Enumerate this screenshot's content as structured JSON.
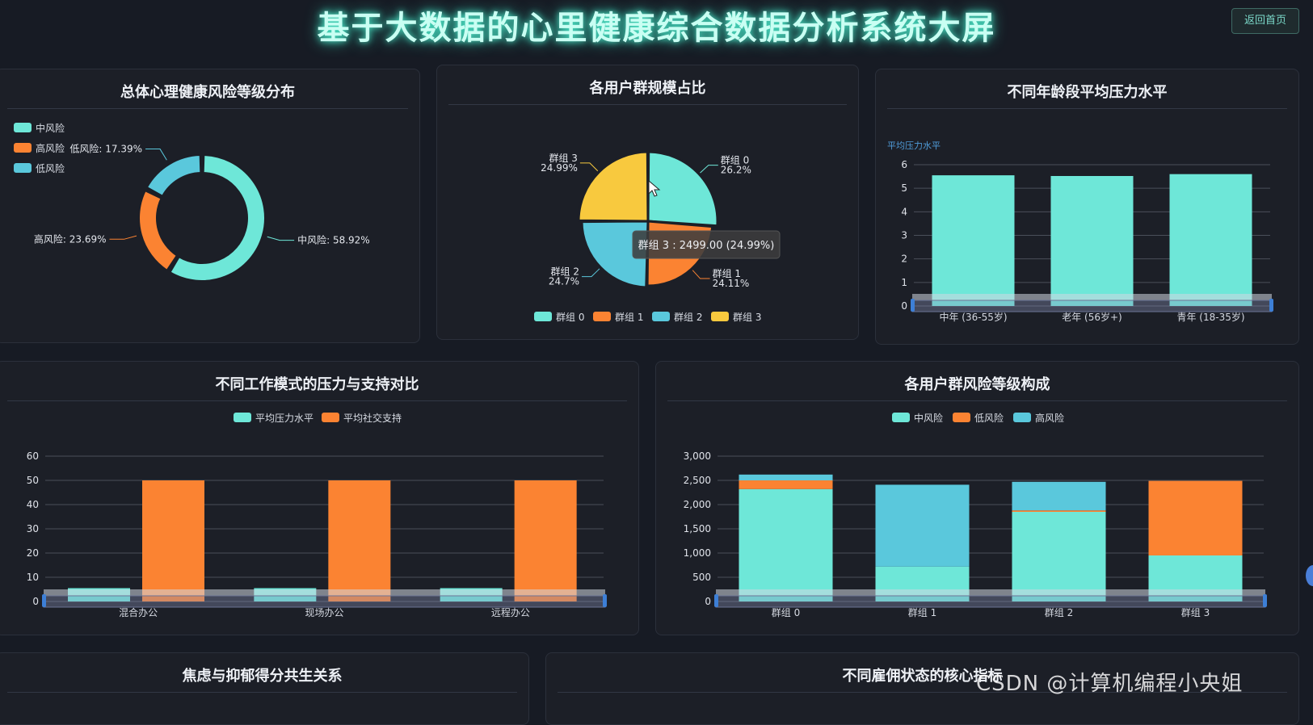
{
  "page_title": "基于大数据的心里健康综合数据分析系统大屏",
  "back_button": "返回首页",
  "watermark": "CSDN @计算机编程小央姐",
  "colors": {
    "teal": "#6ee7d8",
    "orange": "#fb8332",
    "blue": "#5ac8dc",
    "yellow": "#f8c93e"
  },
  "panels": {
    "risk": {
      "title": "总体心理健康风险等级分布"
    },
    "groups": {
      "title": "各用户群规模占比"
    },
    "age": {
      "title": "不同年龄段平均压力水平"
    },
    "work": {
      "title": "不同工作模式的压力与支持对比"
    },
    "grouprisk": {
      "title": "各用户群风险等级构成"
    },
    "anxiety": {
      "title": "焦虑与抑郁得分共生关系"
    },
    "employ": {
      "title": "不同雇佣状态的核心指标"
    }
  },
  "chart_data": [
    {
      "type": "pie",
      "title": "总体心理健康风险等级分布",
      "legend": [
        "中风险",
        "高风险",
        "低风险"
      ],
      "slices": [
        {
          "name": "中风险",
          "value": 58.92,
          "label": "中风险: 58.92%",
          "color": "#6ee7d8"
        },
        {
          "name": "高风险",
          "value": 23.69,
          "label": "高风险: 23.69%",
          "color": "#fb8332"
        },
        {
          "name": "低风险",
          "value": 17.39,
          "label": "低风险: 17.39%",
          "color": "#5ac8dc"
        }
      ],
      "donut": true
    },
    {
      "type": "pie",
      "title": "各用户群规模占比",
      "legend": [
        "群组 0",
        "群组 1",
        "群组 2",
        "群组 3"
      ],
      "slices": [
        {
          "name": "群组 0",
          "value": 26.2,
          "pct": "26.2%",
          "color": "#6ee7d8"
        },
        {
          "name": "群组 1",
          "value": 24.11,
          "pct": "24.11%",
          "color": "#fb8332"
        },
        {
          "name": "群组 2",
          "value": 24.7,
          "pct": "24.7%",
          "color": "#5ac8dc"
        },
        {
          "name": "群组 3",
          "value": 24.99,
          "pct": "24.99%",
          "color": "#f8c93e"
        }
      ],
      "tooltip": "群组 3 : 2499.00 (24.99%)"
    },
    {
      "type": "bar",
      "title": "不同年龄段平均压力水平",
      "ylabel": "平均压力水平",
      "categories": [
        "中年 (36-55岁)",
        "老年 (56岁+)",
        "青年 (18-35岁)"
      ],
      "values": [
        5.55,
        5.52,
        5.6
      ],
      "ylim": [
        0,
        6
      ],
      "yticks": [
        0,
        1,
        2,
        3,
        4,
        5,
        6
      ]
    },
    {
      "type": "bar",
      "title": "不同工作模式的压力与支持对比",
      "categories": [
        "混合办公",
        "现场办公",
        "远程办公"
      ],
      "series": [
        {
          "name": "平均压力水平",
          "values": [
            5.5,
            5.5,
            5.5
          ],
          "color": "#6ee7d8"
        },
        {
          "name": "平均社交支持",
          "values": [
            50,
            50,
            50
          ],
          "color": "#fb8332"
        }
      ],
      "ylim": [
        0,
        60
      ],
      "yticks": [
        0,
        10,
        20,
        30,
        40,
        50,
        60
      ]
    },
    {
      "type": "bar",
      "stacked": true,
      "title": "各用户群风险等级构成",
      "categories": [
        "群组 0",
        "群组 1",
        "群组 2",
        "群组 3"
      ],
      "series": [
        {
          "name": "中风险",
          "values": [
            2320,
            720,
            1850,
            950
          ],
          "color": "#6ee7d8"
        },
        {
          "name": "低风险",
          "values": [
            180,
            0,
            30,
            1540
          ],
          "color": "#fb8332"
        },
        {
          "name": "高风险",
          "values": [
            120,
            1690,
            590,
            0
          ],
          "color": "#5ac8dc"
        }
      ],
      "ylim": [
        0,
        3000
      ],
      "yticks": [
        "0",
        "500",
        "1,000",
        "1,500",
        "2,000",
        "2,500",
        "3,000"
      ]
    }
  ]
}
